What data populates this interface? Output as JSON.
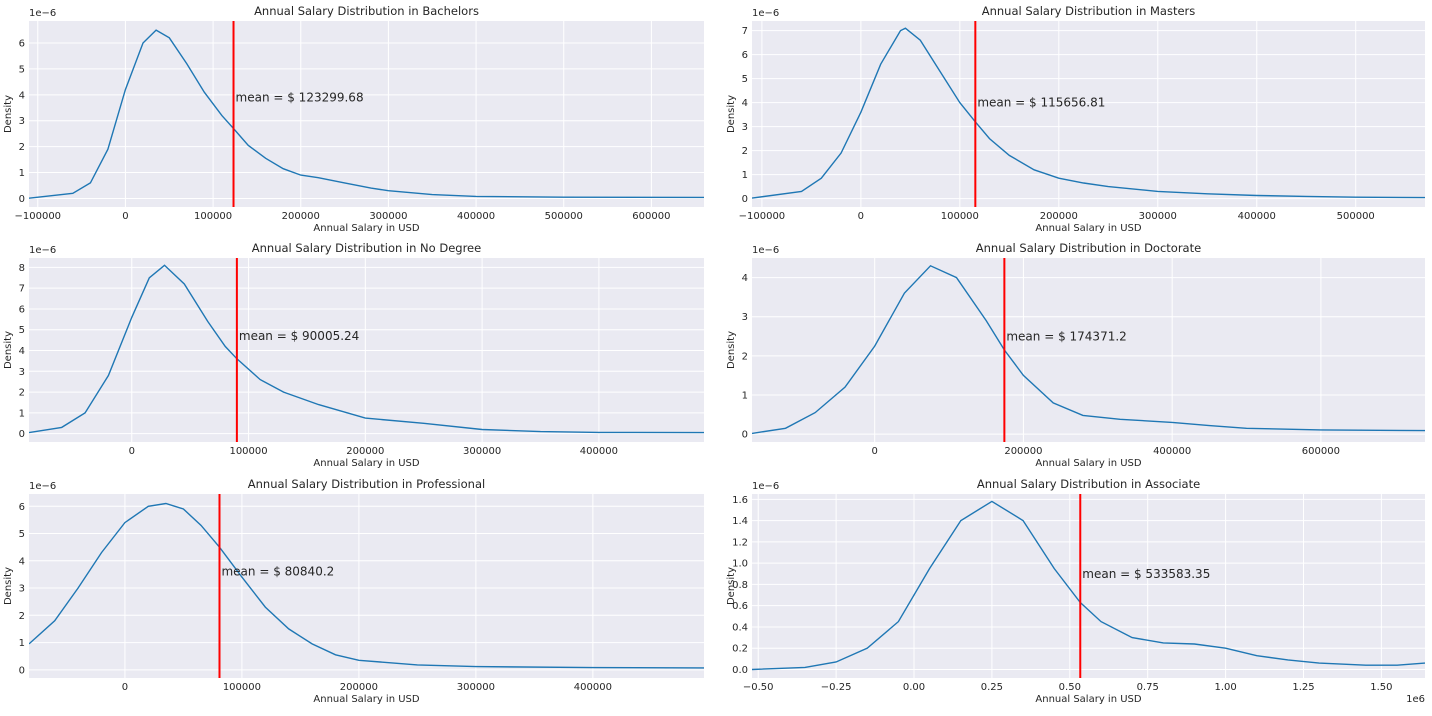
{
  "chart_data": [
    {
      "type": "line",
      "title": "Annual Salary Distribution in Bachelors",
      "xlabel": "Annual Salary in USD",
      "ylabel": "Density",
      "yexp_label": "1e−6",
      "xexp_label": "",
      "xlim": [
        -110000,
        660000
      ],
      "ylim": [
        -0.33,
        6.85
      ],
      "xticks": [
        -100000,
        0,
        100000,
        200000,
        300000,
        400000,
        500000,
        600000
      ],
      "xtick_labels": [
        "−100000",
        "0",
        "100000",
        "200000",
        "300000",
        "400000",
        "500000",
        "600000"
      ],
      "yticks": [
        0,
        1,
        2,
        3,
        4,
        5,
        6
      ],
      "ytick_labels": [
        "0",
        "1",
        "2",
        "3",
        "4",
        "5",
        "6"
      ],
      "mean": 123299.68,
      "mean_label": "mean = $ 123299.68",
      "label_y": 3.9,
      "series": [
        {
          "name": "Bachelors",
          "color": "#1f77b4",
          "x": [
            -110000,
            -60000,
            -40000,
            -20000,
            0,
            20000,
            35000,
            50000,
            70000,
            90000,
            110000,
            123300,
            140000,
            160000,
            180000,
            200000,
            220000,
            250000,
            280000,
            300000,
            350000,
            400000,
            500000,
            660000
          ],
          "y": [
            0.01,
            0.2,
            0.6,
            1.9,
            4.2,
            6.0,
            6.5,
            6.2,
            5.2,
            4.1,
            3.2,
            2.7,
            2.05,
            1.55,
            1.15,
            0.9,
            0.8,
            0.6,
            0.4,
            0.3,
            0.15,
            0.08,
            0.05,
            0.04
          ]
        }
      ],
      "grid": true
    },
    {
      "type": "line",
      "title": "Annual Salary Distribution in Masters",
      "xlabel": "Annual Salary in USD",
      "ylabel": "Density",
      "yexp_label": "1e−6",
      "xexp_label": "",
      "xlim": [
        -110000,
        570000
      ],
      "ylim": [
        -0.35,
        7.4
      ],
      "xticks": [
        -100000,
        0,
        100000,
        200000,
        300000,
        400000,
        500000
      ],
      "xtick_labels": [
        "−100000",
        "0",
        "100000",
        "200000",
        "300000",
        "400000",
        "500000"
      ],
      "yticks": [
        0,
        1,
        2,
        3,
        4,
        5,
        6,
        7
      ],
      "ytick_labels": [
        "0",
        "1",
        "2",
        "3",
        "4",
        "5",
        "6",
        "7"
      ],
      "mean": 115656.81,
      "mean_label": "mean = $ 115656.81",
      "label_y": 4.0,
      "series": [
        {
          "name": "Masters",
          "color": "#1f77b4",
          "x": [
            -110000,
            -60000,
            -40000,
            -20000,
            0,
            20000,
            40000,
            45000,
            60000,
            80000,
            100000,
            115657,
            130000,
            150000,
            175000,
            200000,
            225000,
            250000,
            300000,
            350000,
            400000,
            450000,
            500000,
            570000
          ],
          "y": [
            0.02,
            0.3,
            0.85,
            1.9,
            3.6,
            5.6,
            7.0,
            7.1,
            6.6,
            5.3,
            4.0,
            3.2,
            2.5,
            1.8,
            1.2,
            0.85,
            0.65,
            0.5,
            0.3,
            0.2,
            0.13,
            0.09,
            0.06,
            0.04
          ]
        }
      ],
      "grid": true
    },
    {
      "type": "line",
      "title": "Annual Salary Distribution in No Degree",
      "xlabel": "Annual Salary in USD",
      "ylabel": "Density",
      "yexp_label": "1e−6",
      "xexp_label": "",
      "xlim": [
        -88000,
        490000
      ],
      "ylim": [
        -0.4,
        8.45
      ],
      "xticks": [
        0,
        100000,
        200000,
        300000,
        400000
      ],
      "xtick_labels": [
        "0",
        "100000",
        "200000",
        "300000",
        "400000"
      ],
      "yticks": [
        0,
        1,
        2,
        3,
        4,
        5,
        6,
        7,
        8
      ],
      "ytick_labels": [
        "0",
        "1",
        "2",
        "3",
        "4",
        "5",
        "6",
        "7",
        "8"
      ],
      "mean": 90005.24,
      "mean_label": "mean = $ 90005.24",
      "label_y": 4.7,
      "series": [
        {
          "name": "No Degree",
          "color": "#1f77b4",
          "x": [
            -88000,
            -60000,
            -40000,
            -20000,
            0,
            15000,
            28000,
            45000,
            65000,
            80000,
            90005,
            110000,
            130000,
            160000,
            200000,
            250000,
            300000,
            350000,
            400000,
            490000
          ],
          "y": [
            0.05,
            0.3,
            1.0,
            2.8,
            5.6,
            7.5,
            8.1,
            7.2,
            5.4,
            4.2,
            3.6,
            2.6,
            2.0,
            1.4,
            0.75,
            0.5,
            0.2,
            0.1,
            0.06,
            0.05
          ]
        }
      ],
      "grid": true
    },
    {
      "type": "line",
      "title": "Annual Salary Distribution in Doctorate",
      "xlabel": "Annual Salary in USD",
      "ylabel": "Density",
      "yexp_label": "1e−6",
      "xexp_label": "",
      "xlim": [
        -165000,
        740000
      ],
      "ylim": [
        -0.2,
        4.5
      ],
      "xticks": [
        0,
        200000,
        400000,
        600000
      ],
      "xtick_labels": [
        "0",
        "200000",
        "400000",
        "600000"
      ],
      "yticks": [
        0,
        1,
        2,
        3,
        4
      ],
      "ytick_labels": [
        "0",
        "1",
        "2",
        "3",
        "4"
      ],
      "mean": 174371.2,
      "mean_label": "mean = $ 174371.2",
      "label_y": 2.5,
      "series": [
        {
          "name": "Doctorate",
          "color": "#1f77b4",
          "x": [
            -165000,
            -120000,
            -80000,
            -40000,
            0,
            40000,
            75000,
            110000,
            150000,
            174371,
            200000,
            240000,
            280000,
            330000,
            400000,
            450000,
            500000,
            600000,
            740000
          ],
          "y": [
            0.02,
            0.15,
            0.55,
            1.2,
            2.25,
            3.6,
            4.3,
            4.0,
            2.9,
            2.15,
            1.5,
            0.8,
            0.48,
            0.38,
            0.3,
            0.22,
            0.15,
            0.11,
            0.09
          ]
        }
      ],
      "grid": true
    },
    {
      "type": "line",
      "title": "Annual Salary Distribution in Professional",
      "xlabel": "Annual Salary in USD",
      "ylabel": "Density",
      "yexp_label": "1e−6",
      "xexp_label": "",
      "xlim": [
        -82000,
        495000
      ],
      "ylim": [
        -0.3,
        6.45
      ],
      "xticks": [
        0,
        100000,
        200000,
        300000,
        400000
      ],
      "xtick_labels": [
        "0",
        "100000",
        "200000",
        "300000",
        "400000"
      ],
      "yticks": [
        0,
        1,
        2,
        3,
        4,
        5,
        6
      ],
      "ytick_labels": [
        "0",
        "1",
        "2",
        "3",
        "4",
        "5",
        "6"
      ],
      "mean": 80840.2,
      "mean_label": "mean = $ 80840.2",
      "label_y": 3.6,
      "series": [
        {
          "name": "Professional",
          "color": "#1f77b4",
          "x": [
            -82000,
            -60000,
            -40000,
            -20000,
            0,
            20000,
            35000,
            50000,
            65000,
            80840,
            100000,
            120000,
            140000,
            160000,
            180000,
            200000,
            250000,
            300000,
            400000,
            495000
          ],
          "y": [
            0.95,
            1.8,
            3.0,
            4.3,
            5.4,
            6.0,
            6.1,
            5.9,
            5.3,
            4.5,
            3.4,
            2.3,
            1.5,
            0.95,
            0.55,
            0.35,
            0.18,
            0.12,
            0.08,
            0.07
          ]
        }
      ],
      "grid": true
    },
    {
      "type": "line",
      "title": "Annual Salary Distribution in Associate",
      "xlabel": "Annual Salary in USD",
      "ylabel": "Density",
      "yexp_label": "1e−6",
      "xexp_label": "1e6",
      "xlim": [
        -0.52,
        1.64
      ],
      "ylim": [
        -0.08,
        1.65
      ],
      "xticks": [
        -0.5,
        -0.25,
        0,
        0.25,
        0.5,
        0.75,
        1.0,
        1.25,
        1.5
      ],
      "xtick_labels": [
        "−0.50",
        "−0.25",
        "0.00",
        "0.25",
        "0.50",
        "0.75",
        "1.00",
        "1.25",
        "1.50"
      ],
      "yticks": [
        0,
        0.2,
        0.4,
        0.6,
        0.8,
        1.0,
        1.2,
        1.4,
        1.6
      ],
      "ytick_labels": [
        "0.0",
        "0.2",
        "0.4",
        "0.6",
        "0.8",
        "1.0",
        "1.2",
        "1.4",
        "1.6"
      ],
      "mean": 0.53358335,
      "mean_label": "mean = $ 533583.35",
      "label_y": 0.9,
      "series": [
        {
          "name": "Associate",
          "color": "#1f77b4",
          "x": [
            -0.52,
            -0.35,
            -0.25,
            -0.15,
            -0.05,
            0.05,
            0.15,
            0.25,
            0.35,
            0.45,
            0.5336,
            0.6,
            0.7,
            0.8,
            0.9,
            1.0,
            1.1,
            1.2,
            1.3,
            1.45,
            1.55,
            1.64
          ],
          "y": [
            0.0,
            0.02,
            0.07,
            0.2,
            0.45,
            0.95,
            1.4,
            1.58,
            1.4,
            0.95,
            0.63,
            0.45,
            0.3,
            0.25,
            0.24,
            0.2,
            0.13,
            0.09,
            0.06,
            0.04,
            0.04,
            0.06
          ]
        }
      ],
      "grid": true
    }
  ]
}
